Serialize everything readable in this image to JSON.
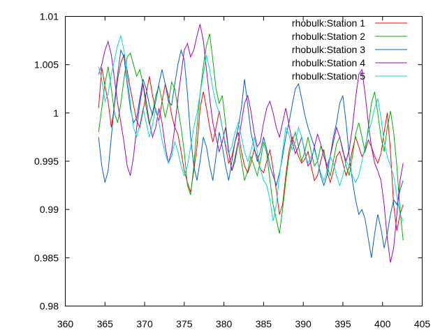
{
  "chart_data": {
    "type": "line",
    "title": "",
    "xlabel": "",
    "ylabel": "",
    "xlim": [
      360,
      405
    ],
    "ylim": [
      0.98,
      1.01
    ],
    "xticks": [
      "360",
      "365",
      "370",
      "375",
      "380",
      "385",
      "390",
      "395",
      "400",
      "405"
    ],
    "yticks": [
      "0.98",
      "0.985",
      "0.99",
      "0.995",
      "1",
      "1.005",
      "1.01"
    ],
    "grid": false,
    "legend_position": "top-right",
    "series": [
      {
        "name": "rhobulk:Station 1",
        "color": "#ff0000",
        "x": [
          364.2,
          364.6,
          365.0,
          365.4,
          365.8,
          366.2,
          366.6,
          367.0,
          367.4,
          367.8,
          368.2,
          368.6,
          369.0,
          369.4,
          369.8,
          370.2,
          370.6,
          371.0,
          371.4,
          371.8,
          372.2,
          372.6,
          373.0,
          373.4,
          373.8,
          374.2,
          374.6,
          375.0,
          375.4,
          375.8,
          376.2,
          376.6,
          377.0,
          377.4,
          377.8,
          378.2,
          378.6,
          379.0,
          379.4,
          379.8,
          380.2,
          380.6,
          381.0,
          381.4,
          381.8,
          382.2,
          382.6,
          383.0,
          383.4,
          383.8,
          384.2,
          384.6,
          385.0,
          385.4,
          385.8,
          386.2,
          386.6,
          387.0,
          387.4,
          387.8,
          388.2,
          388.6,
          389.0,
          389.4,
          389.8,
          390.2,
          390.6,
          391.0,
          391.4,
          391.8,
          392.2,
          392.6,
          393.0,
          393.4,
          393.8,
          394.2,
          394.6,
          395.0,
          395.4,
          395.8,
          396.2,
          396.6,
          397.0,
          397.4,
          397.8,
          398.2,
          398.6,
          399.0,
          399.4,
          399.8,
          400.2,
          400.6,
          401.0,
          401.4,
          401.8,
          402.2,
          402.6
        ],
        "y": [
          1.0005,
          1.0047,
          1.0028,
          1.0012,
          0.9985,
          1.0008,
          1.0035,
          1.0052,
          1.006,
          1.0044,
          1.0025,
          1.0008,
          0.9992,
          0.9985,
          1.0002,
          1.002,
          1.0038,
          1.0018,
          1.0002,
          0.9992,
          1.0012,
          1.003,
          1.0018,
          0.9998,
          0.9985,
          0.9978,
          0.996,
          0.994,
          0.9928,
          0.9918,
          0.994,
          0.9965,
          1.0005,
          1.0022,
          1.0005,
          0.9985,
          0.997,
          0.9985,
          1.0002,
          0.9985,
          0.9965,
          0.9948,
          0.9955,
          0.997,
          0.998,
          0.996,
          0.9945,
          0.9938,
          0.9948,
          0.9962,
          0.9955,
          0.9942,
          0.9938,
          0.995,
          0.9962,
          0.9942,
          0.992,
          0.9895,
          0.9905,
          0.9935,
          0.996,
          0.9975,
          0.9965,
          0.9955,
          0.9948,
          0.9952,
          0.996,
          0.9945,
          0.993,
          0.9935,
          0.995,
          0.9962,
          0.994,
          0.9928,
          0.994,
          0.9955,
          0.996,
          0.9948,
          0.9935,
          0.9945,
          0.9962,
          0.9975,
          0.9965,
          0.9955,
          0.996,
          0.9972,
          0.9965,
          0.9955,
          0.9948,
          0.9958,
          0.998,
          1.0,
          0.996,
          0.9905,
          0.9878,
          0.9895,
          0.9905
        ]
      },
      {
        "name": "rhobulk:Station 2",
        "color": "#00b000",
        "x": [
          364.2,
          364.6,
          365.0,
          365.4,
          365.8,
          366.2,
          366.6,
          367.0,
          367.4,
          367.8,
          368.2,
          368.6,
          369.0,
          369.4,
          369.8,
          370.2,
          370.6,
          371.0,
          371.4,
          371.8,
          372.2,
          372.6,
          373.0,
          373.4,
          373.8,
          374.2,
          374.6,
          375.0,
          375.4,
          375.8,
          376.2,
          376.6,
          377.0,
          377.4,
          377.8,
          378.2,
          378.6,
          379.0,
          379.4,
          379.8,
          380.2,
          380.6,
          381.0,
          381.4,
          381.8,
          382.2,
          382.6,
          383.0,
          383.4,
          383.8,
          384.2,
          384.6,
          385.0,
          385.4,
          385.8,
          386.2,
          386.6,
          387.0,
          387.4,
          387.8,
          388.2,
          388.6,
          389.0,
          389.4,
          389.8,
          390.2,
          390.6,
          391.0,
          391.4,
          391.8,
          392.2,
          392.6,
          393.0,
          393.4,
          393.8,
          394.2,
          394.6,
          395.0,
          395.4,
          395.8,
          396.2,
          396.6,
          397.0,
          397.4,
          397.8,
          398.2,
          398.6,
          399.0,
          399.4,
          399.8,
          400.2,
          400.6,
          401.0,
          401.4,
          401.8,
          402.2,
          402.6
        ],
        "y": [
          0.998,
          1.0005,
          1.003,
          1.0048,
          1.0025,
          1.0,
          0.999,
          1.001,
          1.0035,
          1.0058,
          1.0062,
          1.005,
          1.0038,
          1.0045,
          1.003,
          1.0005,
          0.9988,
          1.0,
          1.0018,
          1.0028,
          1.0012,
          0.9995,
          1.001,
          1.0032,
          1.0025,
          1.0005,
          0.9985,
          0.996,
          0.9925,
          0.9915,
          0.9945,
          0.9985,
          1.002,
          1.0048,
          1.007,
          1.0082,
          1.0055,
          1.0025,
          1.001,
          1.0018,
          0.999,
          0.996,
          0.994,
          0.9955,
          0.997,
          0.995,
          0.993,
          0.994,
          0.9955,
          0.9945,
          0.9935,
          0.995,
          0.997,
          0.9958,
          0.993,
          0.9905,
          0.989,
          0.9875,
          0.99,
          0.993,
          0.9955,
          0.997,
          0.998,
          0.9965,
          0.995,
          0.996,
          0.9975,
          0.996,
          0.9945,
          0.995,
          0.9965,
          0.996,
          0.9945,
          0.9935,
          0.995,
          0.9968,
          0.9975,
          0.9962,
          0.9945,
          0.9935,
          0.9955,
          0.9978,
          0.999,
          0.9975,
          0.996,
          0.9985,
          1.001,
          1.0022,
          1.0,
          0.9975,
          0.996,
          0.9985,
          1.0002,
          0.998,
          0.9945,
          0.99,
          0.9868
        ]
      },
      {
        "name": "rhobulk:Station 3",
        "color": "#0060d0",
        "x": [
          364.2,
          364.6,
          365.0,
          365.4,
          365.8,
          366.2,
          366.6,
          367.0,
          367.4,
          367.8,
          368.2,
          368.6,
          369.0,
          369.4,
          369.8,
          370.2,
          370.6,
          371.0,
          371.4,
          371.8,
          372.2,
          372.6,
          373.0,
          373.4,
          373.8,
          374.2,
          374.6,
          375.0,
          375.4,
          375.8,
          376.2,
          376.6,
          377.0,
          377.4,
          377.8,
          378.2,
          378.6,
          379.0,
          379.4,
          379.8,
          380.2,
          380.6,
          381.0,
          381.4,
          381.8,
          382.2,
          382.6,
          383.0,
          383.4,
          383.8,
          384.2,
          384.6,
          385.0,
          385.4,
          385.8,
          386.2,
          386.6,
          387.0,
          387.4,
          387.8,
          388.2,
          388.6,
          389.0,
          389.4,
          389.8,
          390.2,
          390.6,
          391.0,
          391.4,
          391.8,
          392.2,
          392.6,
          393.0,
          393.4,
          393.8,
          394.2,
          394.6,
          395.0,
          395.4,
          395.8,
          396.2,
          396.6,
          397.0,
          397.4,
          397.8,
          398.2,
          398.6,
          399.0,
          399.4,
          399.8,
          400.2,
          400.6,
          401.0,
          401.4,
          401.8,
          402.2,
          402.6
        ],
        "y": [
          0.9975,
          0.9945,
          0.9928,
          0.994,
          0.9975,
          1.001,
          1.004,
          1.0065,
          1.0058,
          1.003,
          1.0005,
          0.999,
          0.9995,
          1.0015,
          1.0035,
          1.0025,
          1.0008,
          0.9998,
          1.0012,
          1.003,
          1.0045,
          1.003,
          1.0012,
          1.0008,
          1.003,
          1.005,
          1.0065,
          1.0055,
          1.002,
          0.9975,
          0.9945,
          0.993,
          0.995,
          0.9975,
          0.9965,
          0.9945,
          0.993,
          0.9955,
          0.998,
          0.9965,
          0.9945,
          0.993,
          0.995,
          0.997,
          0.9985,
          1.0005,
          1.0035,
          1.0008,
          0.998,
          0.9965,
          0.995,
          0.996,
          0.9975,
          0.9962,
          0.9945,
          0.9935,
          0.9925,
          0.9938,
          0.9955,
          0.9975,
          0.999,
          1.0008,
          1.0025,
          1.003,
          1.0015,
          0.9998,
          0.9985,
          0.9975,
          0.9965,
          0.995,
          0.9935,
          0.9925,
          0.9935,
          0.9955,
          0.9975,
          0.999,
          1.001,
          1.0018,
          0.999,
          0.9955,
          0.993,
          0.991,
          0.9895,
          0.99,
          0.989,
          0.987,
          0.985,
          0.9875,
          0.9895,
          0.988,
          0.986,
          0.9875,
          0.9895,
          0.991,
          0.9905,
          0.992,
          0.993
        ]
      },
      {
        "name": "rhobulk:Station 4",
        "color": "#a000c8",
        "x": [
          364.2,
          364.6,
          365.0,
          365.4,
          365.8,
          366.2,
          366.6,
          367.0,
          367.4,
          367.8,
          368.2,
          368.6,
          369.0,
          369.4,
          369.8,
          370.2,
          370.6,
          371.0,
          371.4,
          371.8,
          372.2,
          372.6,
          373.0,
          373.4,
          373.8,
          374.2,
          374.6,
          375.0,
          375.4,
          375.8,
          376.2,
          376.6,
          377.0,
          377.4,
          377.8,
          378.2,
          378.6,
          379.0,
          379.4,
          379.8,
          380.2,
          380.6,
          381.0,
          381.4,
          381.8,
          382.2,
          382.6,
          383.0,
          383.4,
          383.8,
          384.2,
          384.6,
          385.0,
          385.4,
          385.8,
          386.2,
          386.6,
          387.0,
          387.4,
          387.8,
          388.2,
          388.6,
          389.0,
          389.4,
          389.8,
          390.2,
          390.6,
          391.0,
          391.4,
          391.8,
          392.2,
          392.6,
          393.0,
          393.4,
          393.8,
          394.2,
          394.6,
          395.0,
          395.4,
          395.8,
          396.2,
          396.6,
          397.0,
          397.4,
          397.8,
          398.2,
          398.6,
          399.0,
          399.4,
          399.8,
          400.2,
          400.6,
          401.0,
          401.4,
          401.8,
          402.2,
          402.6
        ],
        "y": [
          1.004,
          1.005,
          1.0065,
          1.0074,
          1.006,
          1.0035,
          1.001,
          0.999,
          0.997,
          0.9945,
          0.9935,
          0.9955,
          0.9985,
          1.001,
          1.003,
          1.0012,
          0.999,
          0.9975,
          0.9985,
          1.0005,
          0.999,
          0.9965,
          0.9948,
          0.996,
          0.9985,
          1.0015,
          1.004,
          1.0065,
          1.0072,
          1.0058,
          1.0065,
          1.008,
          1.0092,
          1.0075,
          1.0045,
          1.0015,
          0.999,
          0.9975,
          0.996,
          0.997,
          0.9985,
          0.996,
          0.994,
          0.995,
          0.997,
          0.999,
          1.001,
          1.0018,
          1.0002,
          0.998,
          0.9965,
          0.997,
          0.999,
          1.0005,
          1.0012,
          1.0,
          0.9985,
          0.9975,
          0.999,
          1.0005,
          0.9988,
          0.997,
          0.9958,
          0.9965,
          0.9975,
          0.996,
          0.9945,
          0.995,
          0.9965,
          0.9978,
          0.9968,
          0.9955,
          0.9945,
          0.9955,
          0.997,
          0.9985,
          0.9975,
          0.996,
          0.995,
          0.9962,
          0.9985,
          1.0015,
          1.004,
          1.0045,
          1.002,
          0.999,
          0.9965,
          0.9948,
          0.994,
          0.993,
          0.9905,
          0.987,
          0.9845,
          0.986,
          0.9895,
          0.993,
          0.9948
        ]
      },
      {
        "name": "rhobulk:Station 5",
        "color": "#00d8d8",
        "x": [
          364.2,
          364.6,
          365.0,
          365.4,
          365.8,
          366.2,
          366.6,
          367.0,
          367.4,
          367.8,
          368.2,
          368.6,
          369.0,
          369.4,
          369.8,
          370.2,
          370.6,
          371.0,
          371.4,
          371.8,
          372.2,
          372.6,
          373.0,
          373.4,
          373.8,
          374.2,
          374.6,
          375.0,
          375.4,
          375.8,
          376.2,
          376.6,
          377.0,
          377.4,
          377.8,
          378.2,
          378.6,
          379.0,
          379.4,
          379.8,
          380.2,
          380.6,
          381.0,
          381.4,
          381.8,
          382.2,
          382.6,
          383.0,
          383.4,
          383.8,
          384.2,
          384.6,
          385.0,
          385.4,
          385.8,
          386.2,
          386.6,
          387.0,
          387.4,
          387.8,
          388.2,
          388.6,
          389.0,
          389.4,
          389.8,
          390.2,
          390.6,
          391.0,
          391.4,
          391.8,
          392.2,
          392.6,
          393.0,
          393.4,
          393.8,
          394.2,
          394.6,
          395.0,
          395.4,
          395.8,
          396.2,
          396.6,
          397.0,
          397.4,
          397.8,
          398.2,
          398.6,
          399.0,
          399.4,
          399.8,
          400.2,
          400.6,
          401.0,
          401.4,
          401.8,
          402.2,
          402.6
        ],
        "y": [
          1.0048,
          1.0035,
          1.0012,
          1.002,
          1.004,
          1.0055,
          1.007,
          1.008,
          1.0065,
          1.004,
          1.001,
          0.9985,
          0.9975,
          0.9988,
          1.0005,
          0.999,
          0.9975,
          0.9988,
          1.0005,
          0.999,
          0.9972,
          0.9958,
          0.9948,
          0.9955,
          0.997,
          0.996,
          0.9945,
          0.9935,
          0.9945,
          0.9965,
          0.9985,
          1.0,
          1.002,
          1.004,
          1.006,
          1.0045,
          1.0025,
          1.001,
          1.0,
          0.9985,
          0.9968,
          0.9958,
          0.9965,
          0.998,
          0.999,
          0.9975,
          0.996,
          0.995,
          0.996,
          0.9975,
          0.996,
          0.9942,
          0.993,
          0.9925,
          0.991,
          0.9888,
          0.9905,
          0.9935,
          0.996,
          0.9985,
          0.9978,
          0.9962,
          0.997,
          0.9985,
          0.9975,
          0.9958,
          0.9948,
          0.9955,
          0.9962,
          0.995,
          0.9938,
          0.993,
          0.994,
          0.9955,
          0.9948,
          0.9935,
          0.9925,
          0.9935,
          0.995,
          0.9945,
          0.9935,
          0.9928,
          0.9935,
          0.995,
          0.9965,
          0.998,
          0.999,
          1.0005,
          1.0015,
          0.9995,
          0.997,
          0.9955,
          0.9945,
          0.9935,
          0.9915,
          0.9895,
          0.9888
        ]
      }
    ]
  }
}
